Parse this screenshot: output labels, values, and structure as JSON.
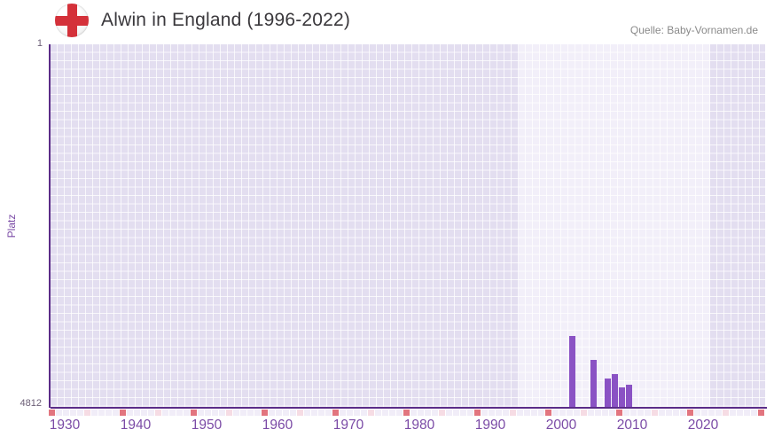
{
  "header": {
    "flag_icon": "england-flag-icon",
    "title": "Alwin in England (1996-2022)",
    "source": "Quelle: Baby-Vornamen.de"
  },
  "colors": {
    "bar": "#8a52c4",
    "axis_line": "#5b2c88",
    "plot_bg": "#e3def0",
    "highlight_bg": "#f2eff9",
    "decade_marker": "#e2757f",
    "half_decade_marker": "#f6dce4",
    "year_marker": "#f1edf8",
    "x_tick_text": "#7b4ba6",
    "y_tick_text": "#6b5e76",
    "title_text": "#3a383c",
    "source_text": "#8a8a8a",
    "flag_cross": "#d4313a"
  },
  "chart_data": {
    "type": "bar",
    "title": "Alwin in England (1996-2022)",
    "ylabel": "Platz",
    "y_axis": {
      "top_label": "1",
      "bottom_label": "4812",
      "min": 1,
      "max": 4812,
      "inverted": true
    },
    "x_axis": {
      "start_year": 1930,
      "end_year": 2030,
      "tick_labels": [
        "1930",
        "1940",
        "1950",
        "1960",
        "1970",
        "1980",
        "1990",
        "2000",
        "2010",
        "2020"
      ],
      "minor_tick_every": 5,
      "major_tick_every": 10
    },
    "highlight_band": {
      "from_year": 1996,
      "to_year": 2022
    },
    "grid": true,
    "legend": false,
    "series": [
      {
        "name": "Platz",
        "points": [
          {
            "year": 2003,
            "platz": 3865
          },
          {
            "year": 2006,
            "platz": 4178
          },
          {
            "year": 2008,
            "platz": 4421
          },
          {
            "year": 2009,
            "platz": 4363
          },
          {
            "year": 2010,
            "platz": 4539
          },
          {
            "year": 2011,
            "platz": 4510
          }
        ]
      }
    ]
  }
}
